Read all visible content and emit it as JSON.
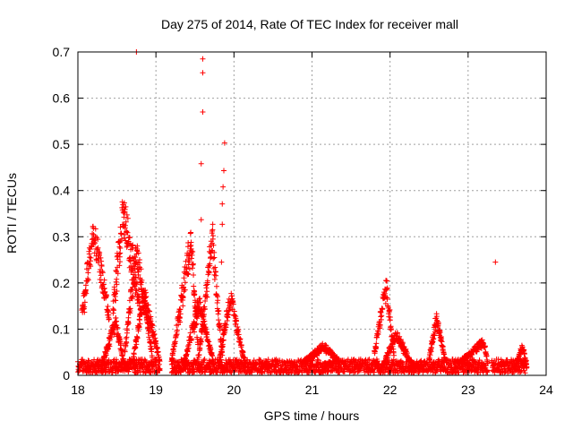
{
  "chart_data": {
    "type": "scatter",
    "title": "Day 275 of 2014, Rate Of TEC Index for receiver mall",
    "xlabel": "GPS time / hours",
    "ylabel": "ROTI / TECUs",
    "xlim": [
      18,
      24
    ],
    "ylim": [
      0,
      0.7
    ],
    "xticks": [
      "18",
      "19",
      "20",
      "21",
      "22",
      "23",
      "24"
    ],
    "yticks": [
      "0",
      "0.1",
      "0.2",
      "0.3",
      "0.4",
      "0.5",
      "0.6",
      "0.7"
    ],
    "grid": true,
    "marker": "+",
    "color": "#ff0000",
    "series": [
      {
        "name": "ROTI",
        "background_band": {
          "x_start": 18.0,
          "x_end": 23.75,
          "gaps": [
            [
              19.05,
              19.2
            ],
            [
              23.25,
              23.3
            ]
          ],
          "y_min": 0.005,
          "y_max": 0.035
        },
        "events": [
          {
            "x_start": 18.05,
            "x_end": 18.4,
            "peak_x": 18.2,
            "peak_y": 0.325,
            "tail_y": 0.13
          },
          {
            "x_start": 18.3,
            "x_end": 18.6,
            "peak_x": 18.48,
            "peak_y": 0.12,
            "tail_y": 0.02
          },
          {
            "x_start": 18.45,
            "x_end": 18.8,
            "peak_x": 18.58,
            "peak_y": 0.37,
            "tail_y": 0.15
          },
          {
            "x_start": 18.6,
            "x_end": 18.95,
            "peak_x": 18.75,
            "peak_y": 0.28,
            "tail_y": 0.05
          },
          {
            "x_start": 18.7,
            "x_end": 19.05,
            "peak_x": 18.85,
            "peak_y": 0.18,
            "tail_y": 0.03
          },
          {
            "x_start": 19.2,
            "x_end": 19.55,
            "peak_x": 19.45,
            "peak_y": 0.3,
            "tail_y": 0.03
          },
          {
            "x_start": 19.35,
            "x_end": 19.75,
            "peak_x": 19.55,
            "peak_y": 0.16,
            "tail_y": 0.02
          },
          {
            "x_start": 19.55,
            "x_end": 19.85,
            "peak_x": 19.72,
            "peak_y": 0.3,
            "tail_y": 0.04
          },
          {
            "x_start": 19.8,
            "x_end": 20.15,
            "peak_x": 19.95,
            "peak_y": 0.175,
            "tail_y": 0.02
          },
          {
            "x_start": 20.9,
            "x_end": 21.35,
            "peak_x": 21.15,
            "peak_y": 0.065,
            "tail_y": 0.03
          },
          {
            "x_start": 21.8,
            "x_end": 22.05,
            "peak_x": 21.95,
            "peak_y": 0.2,
            "tail_y": 0.05
          },
          {
            "x_start": 21.9,
            "x_end": 22.3,
            "peak_x": 22.08,
            "peak_y": 0.09,
            "tail_y": 0.02
          },
          {
            "x_start": 22.5,
            "x_end": 22.7,
            "peak_x": 22.6,
            "peak_y": 0.13,
            "tail_y": 0.04
          },
          {
            "x_start": 22.9,
            "x_end": 23.25,
            "peak_x": 23.2,
            "peak_y": 0.075,
            "tail_y": 0.03
          },
          {
            "x_start": 23.6,
            "x_end": 23.75,
            "peak_x": 23.7,
            "peak_y": 0.065,
            "tail_y": 0.02
          }
        ],
        "outliers": [
          {
            "x": 18.75,
            "y": 0.7
          },
          {
            "x": 19.6,
            "y": 0.685
          },
          {
            "x": 19.6,
            "y": 0.655
          },
          {
            "x": 19.6,
            "y": 0.57
          },
          {
            "x": 19.58,
            "y": 0.458
          },
          {
            "x": 19.58,
            "y": 0.337
          },
          {
            "x": 19.88,
            "y": 0.503
          },
          {
            "x": 19.87,
            "y": 0.443
          },
          {
            "x": 19.86,
            "y": 0.408
          },
          {
            "x": 19.85,
            "y": 0.371
          },
          {
            "x": 19.85,
            "y": 0.327
          },
          {
            "x": 19.84,
            "y": 0.245
          },
          {
            "x": 23.35,
            "y": 0.245
          }
        ]
      }
    ]
  }
}
